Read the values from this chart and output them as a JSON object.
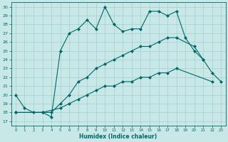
{
  "xlabel": "Humidex (Indice chaleur)",
  "bg_color": "#c8e8e8",
  "grid_color": "#a8cece",
  "line_color": "#006868",
  "xlim": [
    -0.5,
    23.5
  ],
  "ylim": [
    16.5,
    30.5
  ],
  "yticks": [
    17,
    18,
    19,
    20,
    21,
    22,
    23,
    24,
    25,
    26,
    27,
    28,
    29,
    30
  ],
  "xticks": [
    0,
    1,
    2,
    3,
    4,
    5,
    6,
    7,
    8,
    9,
    10,
    11,
    12,
    13,
    14,
    15,
    16,
    17,
    18,
    19,
    20,
    21,
    22,
    23
  ],
  "series1_x": [
    0,
    1,
    2,
    3,
    4,
    5,
    6,
    7,
    8,
    9,
    10,
    11,
    12,
    13,
    14,
    15,
    16,
    17,
    18,
    19,
    20,
    21
  ],
  "series1_y": [
    20.0,
    18.5,
    18.0,
    18.0,
    17.5,
    25.0,
    27.0,
    27.5,
    28.5,
    27.5,
    30.0,
    28.0,
    27.2,
    27.5,
    27.5,
    29.5,
    29.5,
    29.0,
    29.5,
    26.5,
    25.0,
    24.0
  ],
  "series2_x": [
    0,
    3,
    4,
    5,
    6,
    7,
    8,
    9,
    10,
    11,
    12,
    13,
    14,
    15,
    16,
    17,
    18,
    20,
    21,
    22,
    23
  ],
  "series2_y": [
    18.0,
    18.0,
    18.0,
    19.0,
    20.0,
    21.5,
    22.0,
    23.0,
    23.5,
    24.0,
    24.5,
    25.0,
    25.5,
    25.5,
    26.0,
    26.5,
    26.5,
    25.5,
    24.0,
    22.5,
    21.5
  ],
  "series3_x": [
    0,
    3,
    5,
    6,
    7,
    8,
    9,
    10,
    11,
    12,
    13,
    14,
    15,
    16,
    17,
    18,
    22
  ],
  "series3_y": [
    18.0,
    18.0,
    18.5,
    19.0,
    19.5,
    20.0,
    20.5,
    21.0,
    21.0,
    21.5,
    21.5,
    22.0,
    22.0,
    22.5,
    22.5,
    23.0,
    21.5
  ]
}
